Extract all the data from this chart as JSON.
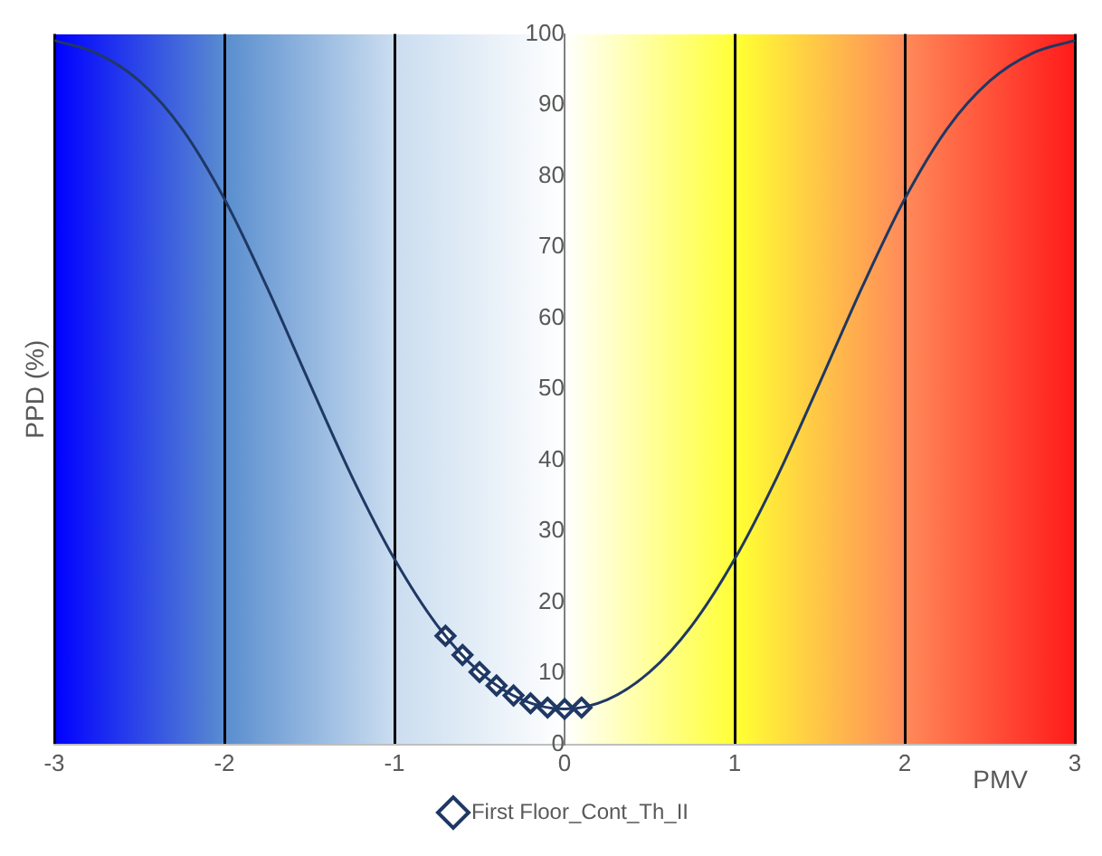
{
  "chart_data": {
    "type": "line",
    "xlabel": "PMV",
    "ylabel": "PPD (%)",
    "series": [
      {
        "color": "#1f3864",
        "x": [
          -3,
          -2.75,
          -2.5,
          -2.25,
          -2,
          -1.75,
          -1.5,
          -1.25,
          -1,
          -0.75,
          -0.5,
          -0.25,
          0,
          0.25,
          0.5,
          0.75,
          1,
          1.25,
          1.5,
          1.75,
          2,
          2.25,
          2.5,
          2.75,
          3
        ],
        "values": [
          99.1,
          97.3,
          93.4,
          86.7,
          76.8,
          64.4,
          50.9,
          37.7,
          26.1,
          16.8,
          10.2,
          6.3,
          5,
          6.3,
          10.2,
          16.8,
          26.1,
          37.7,
          50.9,
          64.4,
          76.8,
          86.7,
          93.4,
          97.3,
          99.1
        ]
      },
      {
        "type": "scatter",
        "name": "First Floor_Cont_Th_II",
        "marker": "diamond",
        "color": "#1f3864",
        "x": [
          -0.7,
          -0.6,
          -0.5,
          -0.4,
          -0.3,
          -0.2,
          -0.1,
          0,
          0.1
        ],
        "values": [
          15.3,
          12.6,
          10.2,
          8.3,
          6.9,
          5.8,
          5.2,
          5,
          5.2
        ]
      }
    ],
    "xlim": [
      -3,
      3
    ],
    "xticks": [
      -3,
      -2,
      -1,
      0,
      1,
      2,
      3
    ],
    "ylim": [
      0,
      100
    ],
    "yticks": [
      0,
      10,
      20,
      30,
      40,
      50,
      60,
      70,
      80,
      90,
      100
    ],
    "grid": "x",
    "legend": "bottom"
  }
}
